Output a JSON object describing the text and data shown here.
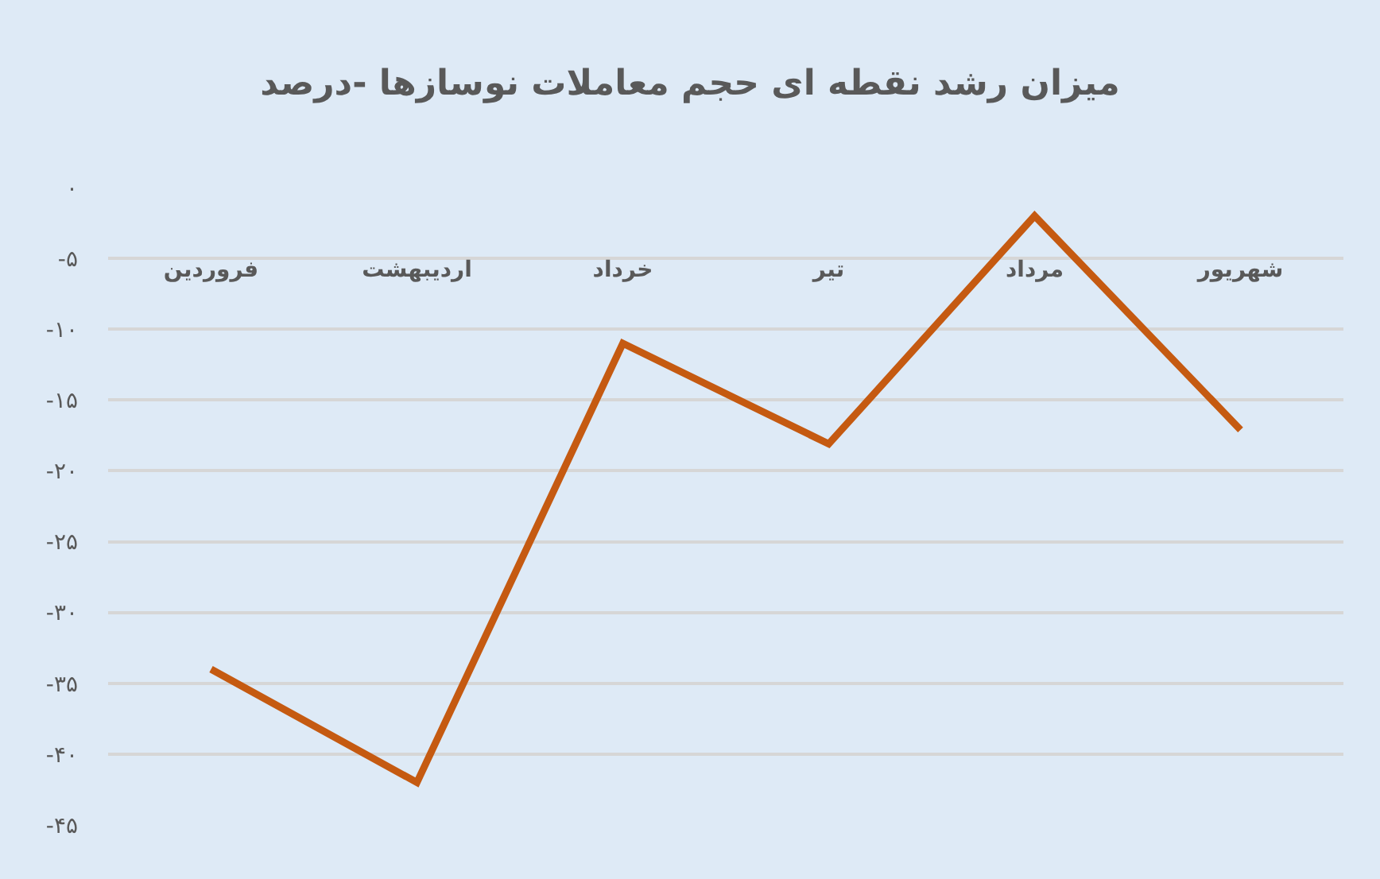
{
  "chart_data": {
    "type": "line",
    "title": "میزان رشد نقطه ای حجم معاملات نوسازها -درصد",
    "categories": [
      "فروردین",
      "اردیبهشت",
      "خرداد",
      "تیر",
      "مرداد",
      "شهریور"
    ],
    "series": [
      {
        "color": "#c55a11",
        "values": [
          -34,
          -42,
          -11,
          -18.1,
          -2,
          -17.1
        ]
      }
    ],
    "ylim": [
      -45,
      0
    ],
    "yticks": [
      {
        "value": 0,
        "label": "۰"
      },
      {
        "value": -5,
        "label": "-۵"
      },
      {
        "value": -10,
        "label": "-۱۰"
      },
      {
        "value": -15,
        "label": "-۱۵"
      },
      {
        "value": -20,
        "label": "-۲۰"
      },
      {
        "value": -25,
        "label": "-۲۵"
      },
      {
        "value": -30,
        "label": "-۳۰"
      },
      {
        "value": -35,
        "label": "-۳۵"
      },
      {
        "value": -40,
        "label": "-۴۰"
      },
      {
        "value": -45,
        "label": "-۴۵"
      }
    ],
    "grid": "y",
    "marker": "none",
    "line_style": "solid"
  }
}
